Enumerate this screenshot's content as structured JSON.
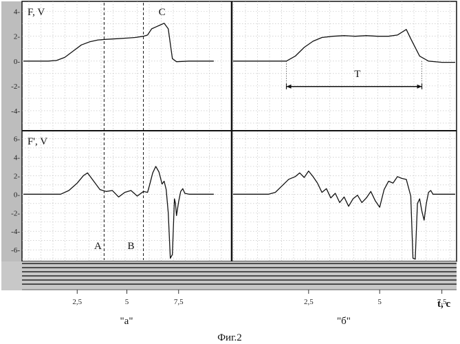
{
  "figure_caption": "Фиг.2",
  "chart_data": [
    {
      "type": "line",
      "ylabel": "F, V",
      "ylim": [
        -5.5,
        4.7
      ],
      "yticks": [
        4,
        2,
        0,
        -2,
        -4
      ],
      "ytick_labels": [
        "4-",
        "2-",
        "0-",
        "-2-",
        "-4-"
      ],
      "panels": [
        {
          "name": "\"а\"",
          "xlim": [
            0,
            10
          ],
          "series": [
            {
              "x": [
                0,
                1.2,
                1.6,
                2,
                2.4,
                2.8,
                3.2,
                3.6,
                4,
                4.5,
                5,
                5.4,
                5.8,
                6,
                6.2,
                6.4,
                6.6,
                6.8,
                7,
                7.2,
                7.4,
                8,
                9.2
              ],
              "y": [
                0,
                0,
                0.05,
                0.3,
                0.8,
                1.3,
                1.55,
                1.7,
                1.75,
                1.8,
                1.85,
                1.9,
                2.0,
                2.1,
                2.6,
                2.75,
                2.9,
                3.05,
                2.6,
                0.2,
                -0.05,
                0,
                0
              ]
            }
          ],
          "annotations": [
            {
              "text": "C",
              "x": 6.7,
              "y": 3.7
            }
          ]
        },
        {
          "name": "\"б\"",
          "xlim": [
            0,
            10
          ],
          "series": [
            {
              "x": [
                0,
                1.5,
                2,
                2.4,
                2.8,
                3.2,
                3.6,
                4,
                4.5,
                5,
                5.5,
                6,
                6.5,
                7,
                7.4,
                7.8,
                8,
                8.4,
                8.8,
                9.4,
                10
              ],
              "y": [
                0,
                0,
                0,
                0,
                0.4,
                1.1,
                1.6,
                1.9,
                2.0,
                2.05,
                2.0,
                2.05,
                2.0,
                2.0,
                2.1,
                2.55,
                1.8,
                0.4,
                0,
                -0.1,
                -0.1
              ]
            }
          ],
          "annotations": [
            {
              "text": "T",
              "x": 5.6,
              "y": -1.3
            }
          ],
          "interval": {
            "from": 2.4,
            "to": 8.5,
            "y": -2.05,
            "label": "T"
          }
        }
      ]
    },
    {
      "type": "line",
      "ylabel": "F', V",
      "ylim": [
        -7.1,
        6.7
      ],
      "yticks": [
        6,
        4,
        2,
        0,
        -2,
        -4,
        -6
      ],
      "ytick_labels": [
        "6-",
        "4-",
        "2-",
        "0-",
        "-2-",
        "-4-",
        "-6-"
      ],
      "panels": [
        {
          "name": "\"а\"",
          "xlim": [
            0,
            10
          ],
          "series": [
            {
              "x": [
                0,
                1.8,
                2.2,
                2.6,
                2.9,
                3.1,
                3.4,
                3.7,
                4,
                4.3,
                4.6,
                4.9,
                5.2,
                5.5,
                5.8,
                6,
                6.1,
                6.25,
                6.4,
                6.55,
                6.7,
                6.8,
                6.9,
                7.0,
                7.1,
                7.2,
                7.3,
                7.35,
                7.4,
                7.5,
                7.6,
                7.7,
                7.8,
                8,
                8.5,
                9.2
              ],
              "y": [
                0,
                0,
                0.4,
                1.2,
                2.0,
                2.3,
                1.4,
                0.5,
                0.3,
                0.4,
                -0.3,
                0.2,
                0.4,
                -0.2,
                0.3,
                0.2,
                1.0,
                2.3,
                3.0,
                2.4,
                1.1,
                1.4,
                0.5,
                -2.0,
                -6.9,
                -6.5,
                -0.5,
                -1.0,
                -2.3,
                -0.8,
                0.3,
                0.6,
                0.1,
                0,
                0,
                0
              ]
            }
          ],
          "annotations": [
            {
              "text": "A",
              "x": 3.6,
              "y": -5.9
            },
            {
              "text": "B",
              "x": 5.2,
              "y": -5.9
            }
          ]
        },
        {
          "name": "\"б\"",
          "xlim": [
            0,
            10
          ],
          "series": [
            {
              "x": [
                0,
                1.6,
                1.9,
                2.2,
                2.5,
                2.8,
                3.0,
                3.2,
                3.4,
                3.6,
                3.8,
                4,
                4.2,
                4.4,
                4.6,
                4.8,
                5,
                5.2,
                5.4,
                5.6,
                5.8,
                6,
                6.2,
                6.4,
                6.6,
                6.8,
                7,
                7.2,
                7.4,
                7.6,
                7.8,
                8,
                8.1,
                8.2,
                8.3,
                8.4,
                8.5,
                8.6,
                8.7,
                8.8,
                8.9,
                9.0,
                9.2,
                9.6,
                10
              ],
              "y": [
                0,
                0,
                0.2,
                0.9,
                1.6,
                1.9,
                2.3,
                1.8,
                2.5,
                1.9,
                1.2,
                0.2,
                0.6,
                -0.4,
                0.1,
                -0.9,
                -0.3,
                -1.3,
                -0.5,
                -0.1,
                -0.9,
                -0.4,
                0.3,
                -0.7,
                -1.4,
                0.5,
                1.4,
                1.2,
                1.9,
                1.7,
                1.6,
                -0.2,
                -6.9,
                -7.0,
                -1.0,
                -0.5,
                -1.8,
                -2.8,
                -1.0,
                0.2,
                0.4,
                0,
                0,
                0,
                0
              ]
            }
          ],
          "annotations": []
        }
      ]
    }
  ],
  "x_axis": {
    "label": "t, c",
    "panels": [
      {
        "name": "\"а\"",
        "ticks": [
          2.5,
          5,
          7.5
        ],
        "tick_labels": [
          "2,5",
          "5",
          "7,5"
        ],
        "tick_x": [
          2.6,
          5.0,
          7.5
        ]
      },
      {
        "name": "\"б\"",
        "ticks": [
          2.5,
          5,
          7.5
        ],
        "tick_labels": [
          "2,5",
          "5",
          "7,5"
        ],
        "tick_x": [
          3.4,
          6.6,
          9.4
        ]
      }
    ]
  },
  "markers": [
    {
      "label": "A",
      "panel": "\"а\"",
      "x": 3.9,
      "style": "dashed"
    },
    {
      "label": "B",
      "panel": "\"а\"",
      "x": 5.8,
      "style": "dashed"
    }
  ],
  "grid": true,
  "bottom_strip_lines": 6
}
